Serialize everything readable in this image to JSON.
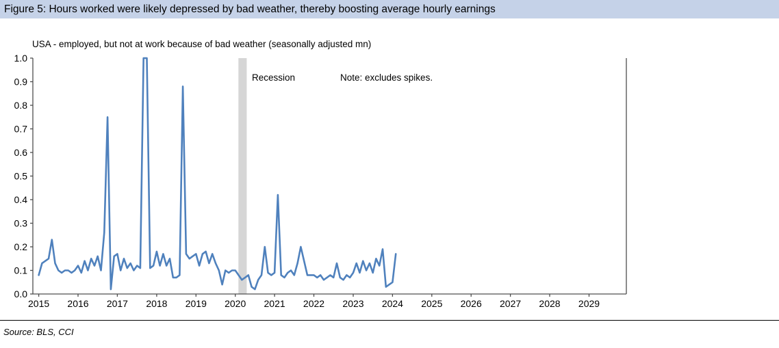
{
  "header": {
    "title": "Figure 5: Hours worked were likely depressed by bad weather, thereby boosting average hourly earnings"
  },
  "chart": {
    "subtitle": "USA - employed, but not at work because of bad weather (seasonally adjusted mn)",
    "annotations": {
      "recession_label": "Recession",
      "note": "Note: excludes spikes."
    }
  },
  "footer": {
    "source": "Source: BLS, CCI"
  },
  "colors": {
    "header_bg": "#c5d2e8",
    "line": "#4f81bd",
    "recession_band": "#d6d6d6",
    "axis": "#4d4d4d",
    "text": "#000000"
  },
  "chart_data": {
    "type": "line",
    "title": "USA - employed, but not at work because of bad weather (seasonally adjusted mn)",
    "xlabel": "",
    "ylabel": "",
    "xlim": [
      2014.85,
      2029.95
    ],
    "ylim": [
      0,
      1.0
    ],
    "x_ticks": [
      2015,
      2016,
      2017,
      2018,
      2019,
      2020,
      2021,
      2022,
      2023,
      2024,
      2025,
      2026,
      2027,
      2028,
      2029
    ],
    "y_ticks": [
      0.0,
      0.1,
      0.2,
      0.3,
      0.4,
      0.5,
      0.6,
      0.7,
      0.8,
      0.9,
      1.0
    ],
    "grid": false,
    "legend": "none",
    "note": "Note: excludes spikes.",
    "recession_band": {
      "label": "Recession",
      "x_start": 2020.08,
      "x_end": 2020.29
    },
    "series": [
      {
        "name": "USA employed but not at work because of bad weather (mn, seasonally adjusted)",
        "frequency": "monthly",
        "start_year": 2015,
        "start_month": 1,
        "clipped_at_ymax": [
          "2017-09",
          "2017-10"
        ],
        "values": [
          0.08,
          0.13,
          0.14,
          0.15,
          0.23,
          0.13,
          0.1,
          0.09,
          0.1,
          0.1,
          0.09,
          0.1,
          0.12,
          0.09,
          0.14,
          0.1,
          0.15,
          0.12,
          0.16,
          0.1,
          0.26,
          0.75,
          0.02,
          0.16,
          0.17,
          0.1,
          0.15,
          0.11,
          0.13,
          0.1,
          0.12,
          0.11,
          1.0,
          1.0,
          0.11,
          0.12,
          0.18,
          0.12,
          0.17,
          0.12,
          0.15,
          0.07,
          0.07,
          0.08,
          0.88,
          0.17,
          0.15,
          0.16,
          0.17,
          0.12,
          0.17,
          0.18,
          0.13,
          0.17,
          0.13,
          0.1,
          0.04,
          0.1,
          0.09,
          0.1,
          0.1,
          0.08,
          0.06,
          0.07,
          0.08,
          0.03,
          0.02,
          0.06,
          0.08,
          0.2,
          0.09,
          0.08,
          0.09,
          0.42,
          0.08,
          0.07,
          0.09,
          0.1,
          0.08,
          0.13,
          0.2,
          0.14,
          0.08,
          0.08,
          0.08,
          0.07,
          0.08,
          0.06,
          0.07,
          0.08,
          0.07,
          0.13,
          0.07,
          0.06,
          0.08,
          0.07,
          0.09,
          0.13,
          0.09,
          0.14,
          0.1,
          0.13,
          0.09,
          0.15,
          0.12,
          0.19,
          0.03,
          0.04,
          0.05,
          0.17
        ]
      }
    ]
  }
}
